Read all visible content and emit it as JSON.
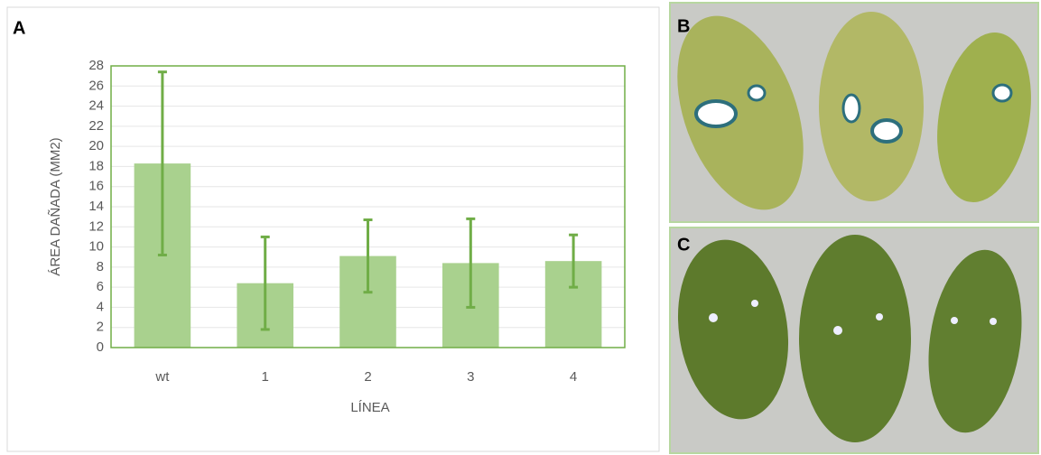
{
  "panel_labels": [
    "A",
    "B",
    "C"
  ],
  "chart_data": {
    "type": "bar",
    "categories": [
      "wt",
      "1",
      "2",
      "3",
      "4"
    ],
    "values": [
      18.3,
      6.4,
      9.1,
      8.4,
      8.6
    ],
    "errors": [
      9.1,
      4.6,
      3.6,
      4.4,
      2.6
    ],
    "color": "#a9d18e",
    "error_color": "#70ad47",
    "x_label": "LÍNEA",
    "y_label": "ÁREA DAÑADA (MM2)",
    "ylim": [
      0,
      28
    ],
    "yticks": [
      0,
      2,
      4,
      6,
      8,
      10,
      12,
      14,
      16,
      18,
      20,
      22,
      24,
      26,
      28
    ],
    "grid": true
  }
}
